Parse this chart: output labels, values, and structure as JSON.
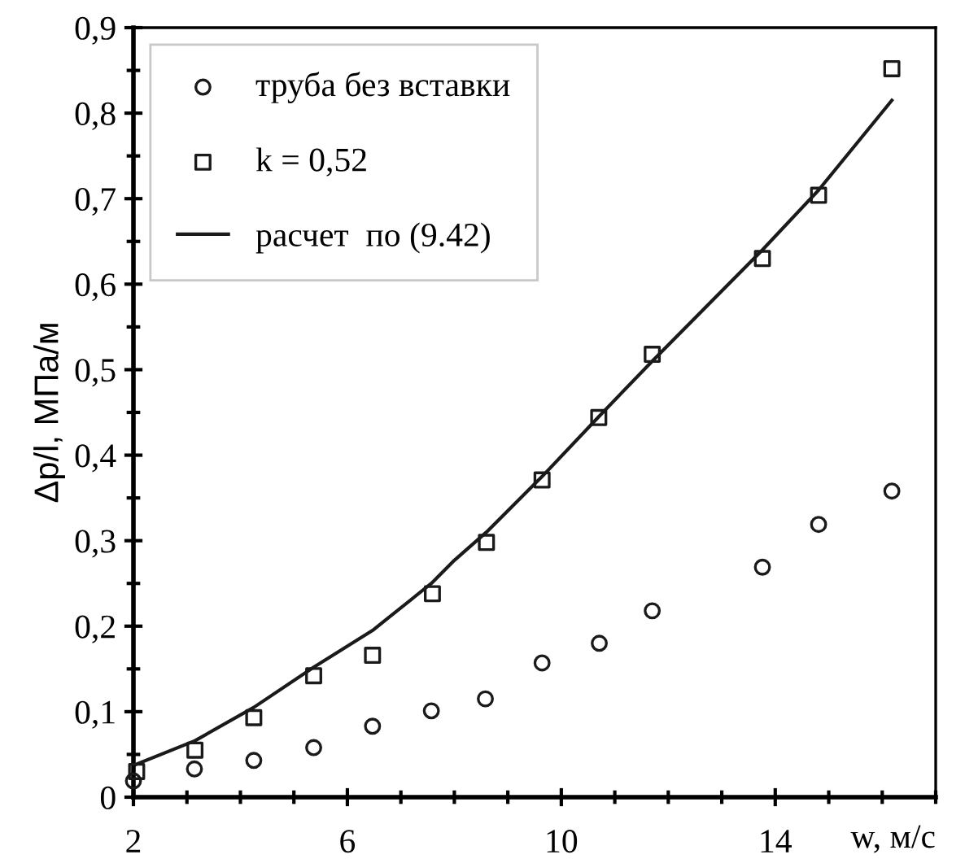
{
  "chart_data": {
    "type": "scatter",
    "xlabel": "w, м/с",
    "ylabel": "Δp/l, МПа/м",
    "xlim": [
      2,
      17
    ],
    "ylim": [
      0,
      0.9
    ],
    "xticks": [
      2,
      6,
      10,
      14
    ],
    "yticks": [
      {
        "value": 0,
        "label": "0"
      },
      {
        "value": 0.1,
        "label": "0,1"
      },
      {
        "value": 0.2,
        "label": "0,2"
      },
      {
        "value": 0.3,
        "label": "0,3"
      },
      {
        "value": 0.4,
        "label": "0,4"
      },
      {
        "value": 0.5,
        "label": "0,5"
      },
      {
        "value": 0.6,
        "label": "0,6"
      },
      {
        "value": 0.7,
        "label": "0,7"
      },
      {
        "value": 0.8,
        "label": "0,8"
      },
      {
        "value": 0.9,
        "label": "0,9"
      }
    ],
    "grid": false,
    "legend": "top left",
    "series": [
      {
        "name": "труба без вставки",
        "marker": "circle",
        "color": "#1a1a1a",
        "x": [
          2.0,
          3.14,
          4.25,
          5.37,
          6.47,
          7.57,
          8.58,
          9.64,
          10.71,
          11.7,
          13.76,
          14.81,
          16.18
        ],
        "values": [
          0.019,
          0.033,
          0.043,
          0.058,
          0.083,
          0.101,
          0.115,
          0.157,
          0.18,
          0.218,
          0.269,
          0.319,
          0.358
        ]
      },
      {
        "name": "k = 0,52",
        "marker": "square",
        "color": "#1a1a1a",
        "x": [
          2.06,
          3.15,
          4.25,
          5.37,
          6.47,
          7.59,
          8.6,
          9.64,
          10.7,
          11.7,
          13.76,
          14.81,
          16.18
        ],
        "values": [
          0.03,
          0.055,
          0.093,
          0.142,
          0.166,
          0.238,
          0.298,
          0.371,
          0.444,
          0.518,
          0.63,
          0.704,
          0.852
        ]
      },
      {
        "name": "расчет  по (9.42)",
        "type": "line",
        "marker": "none",
        "line_style": "solid",
        "color": "#1a1a1a",
        "x": [
          2.0,
          3.15,
          4.25,
          5.37,
          6.47,
          7.57,
          8.0,
          8.6,
          9.64,
          10.7,
          11.7,
          13.76,
          14.81,
          16.18
        ],
        "values": [
          0.037,
          0.066,
          0.105,
          0.152,
          0.195,
          0.25,
          0.277,
          0.31,
          0.375,
          0.445,
          0.51,
          0.64,
          0.71,
          0.815
        ]
      }
    ]
  }
}
